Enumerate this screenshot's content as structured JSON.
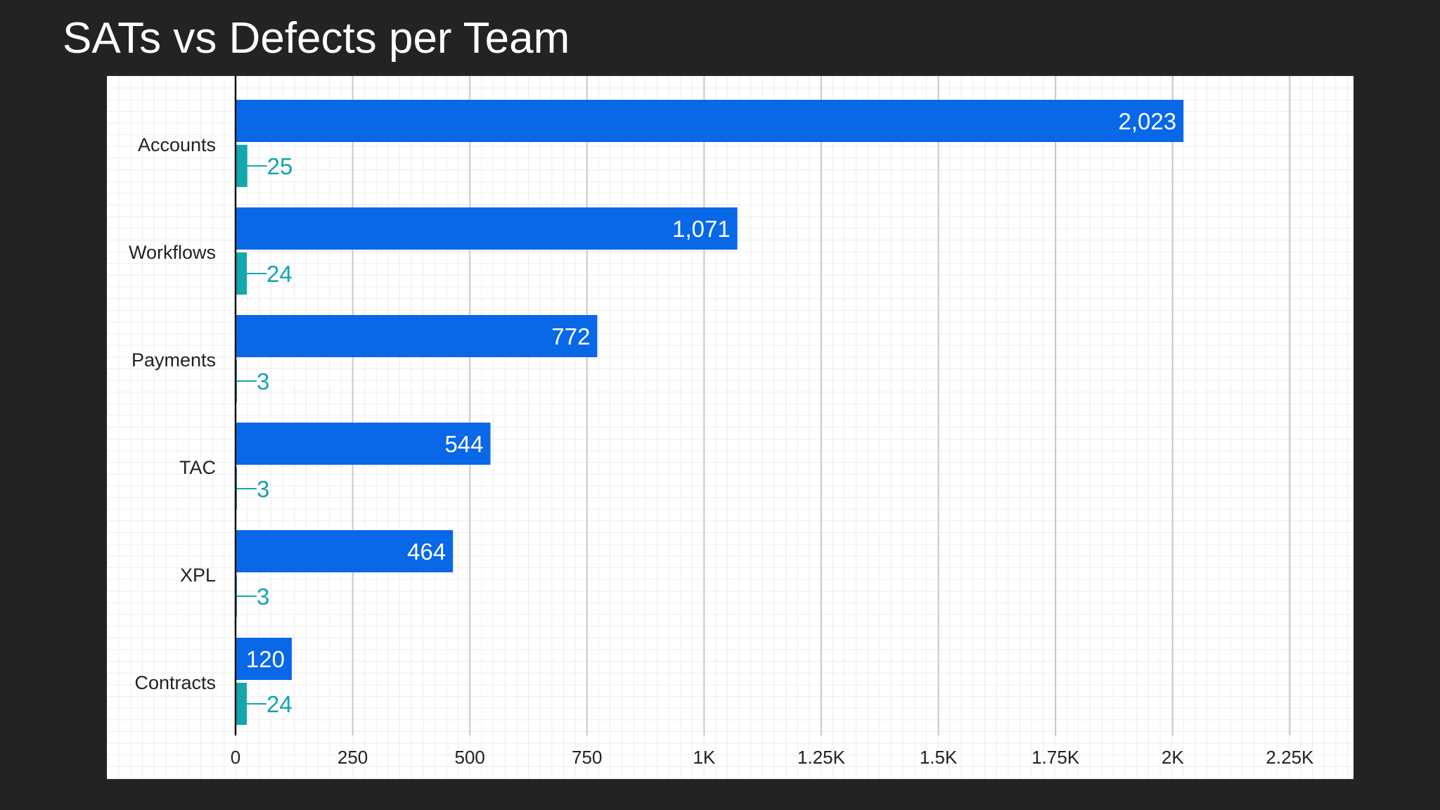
{
  "title": "SATs vs Defects per Team",
  "colors": {
    "background": "#232323",
    "sats_bar": "#0868e8",
    "defects_bar": "#14a7ae",
    "axis": "#111111",
    "gridline": "#c8c8c8"
  },
  "chart_data": {
    "type": "bar",
    "orientation": "horizontal",
    "title": "SATs vs Defects per Team",
    "categories": [
      "Accounts",
      "Workflows",
      "Payments",
      "TAC",
      "XPL",
      "Contracts"
    ],
    "series": [
      {
        "values": [
          2023,
          1071,
          772,
          544,
          464,
          120
        ],
        "labels": [
          "2,023",
          "1,071",
          "772",
          "544",
          "464",
          "120"
        ],
        "color": "#0868e8",
        "label_position": "inside-end"
      },
      {
        "values": [
          25,
          24,
          3,
          3,
          3,
          24
        ],
        "labels": [
          "25",
          "24",
          "3",
          "3",
          "3",
          "24"
        ],
        "color": "#14a7ae",
        "label_position": "outside-end-with-leader"
      }
    ],
    "x_ticks": [
      0,
      250,
      500,
      750,
      1000,
      1250,
      1500,
      1750,
      2000,
      2250
    ],
    "x_tick_labels": [
      "0",
      "250",
      "500",
      "750",
      "1K",
      "1.25K",
      "1.5K",
      "1.75K",
      "2K",
      "2.25K"
    ],
    "xlim": [
      0,
      2250
    ],
    "grid": true,
    "legend": "none"
  }
}
